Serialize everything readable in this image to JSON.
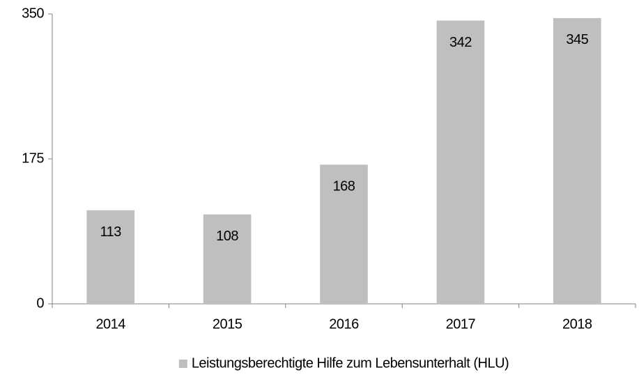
{
  "chart_data": {
    "type": "bar",
    "categories": [
      "2014",
      "2015",
      "2016",
      "2017",
      "2018"
    ],
    "series": [
      {
        "name": "Leistungsberechtigte Hilfe zum Lebensunterhalt (HLU)",
        "color": "#bfbfbf",
        "values": [
          113,
          108,
          168,
          342,
          345
        ]
      }
    ],
    "ylim": [
      0,
      350
    ],
    "yticks": [
      0,
      175,
      350
    ],
    "grid": false,
    "legend": "bottom",
    "data_labels": true
  }
}
